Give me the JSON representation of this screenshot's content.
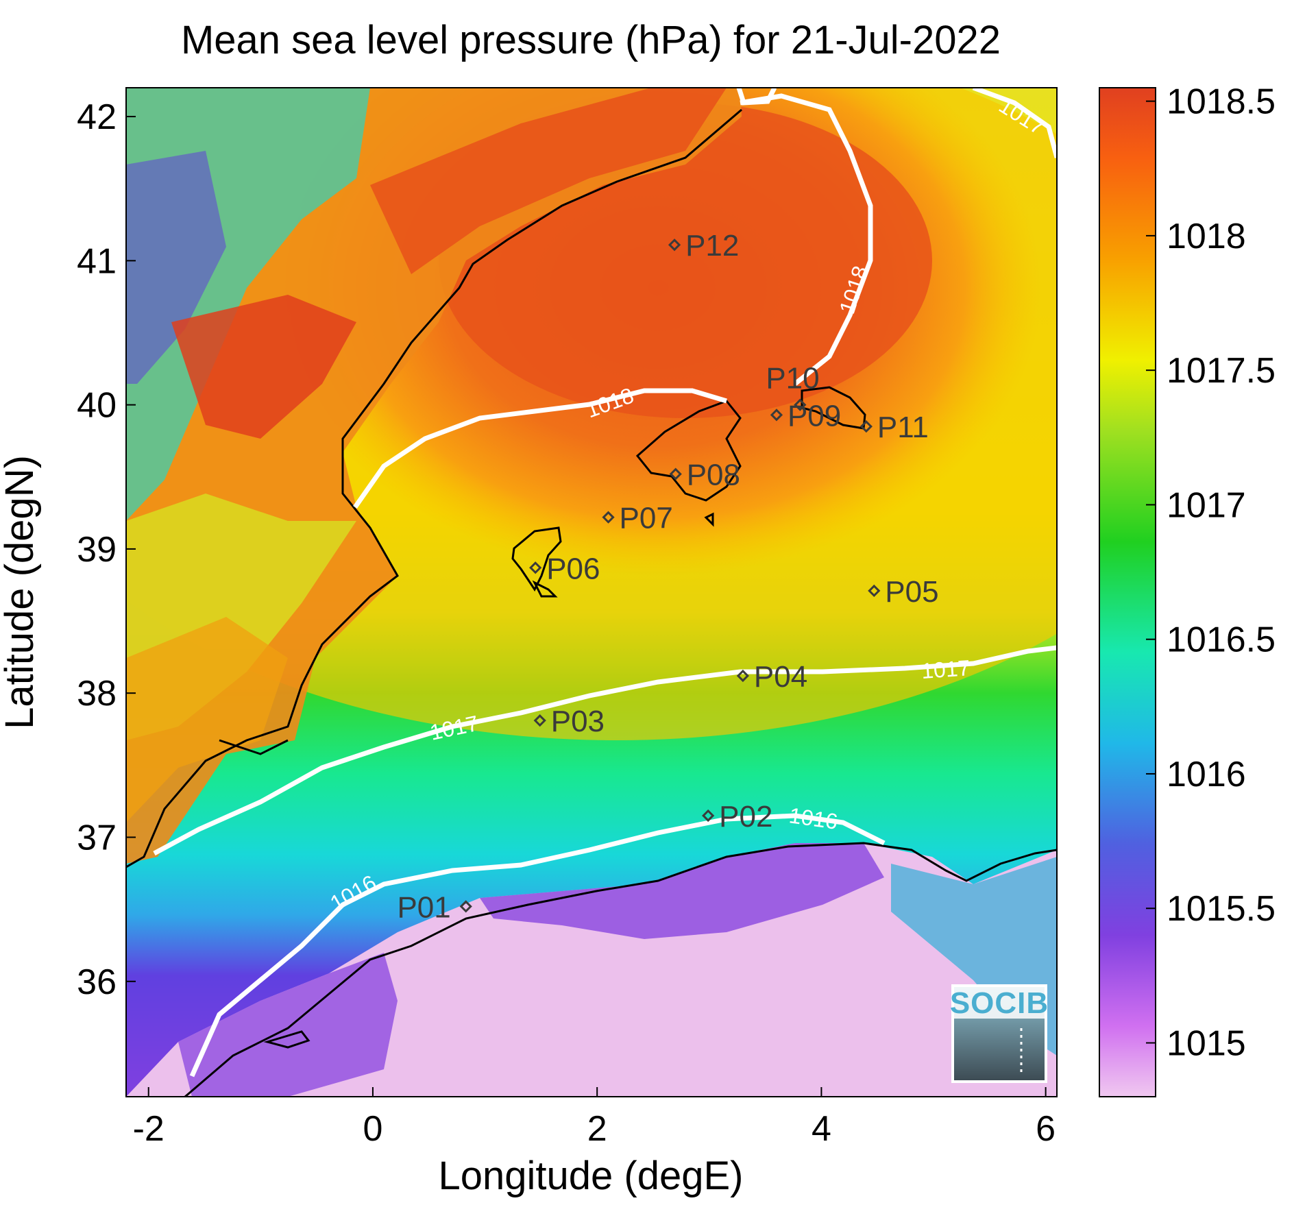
{
  "chart_data": {
    "type": "heatmap",
    "title": "Mean sea level pressure (hPa) for 21-Jul-2022",
    "xlabel": "Longitude (degE)",
    "ylabel": "Latitude (degN)",
    "xlim": [
      -2.2,
      6.1
    ],
    "ylim": [
      35.2,
      42.2
    ],
    "x_ticks": [
      "-2",
      "0",
      "2",
      "4",
      "6"
    ],
    "y_ticks": [
      "36",
      "37",
      "38",
      "39",
      "40",
      "41",
      "42"
    ],
    "colorbar": {
      "range": [
        1014.8,
        1018.55
      ],
      "ticks": [
        "1015",
        "1015.5",
        "1016",
        "1016.5",
        "1017",
        "1017.5",
        "1018",
        "1018.5"
      ],
      "colors": [
        "#f0c8f0",
        "#c040f0",
        "#7040e0",
        "#3a8ae6",
        "#18d8e0",
        "#18e890",
        "#20d020",
        "#a0e020",
        "#f0f000",
        "#f8b000",
        "#f87010",
        "#e04020"
      ]
    },
    "contour_labels": [
      "1016",
      "1016",
      "1017",
      "1017",
      "1017",
      "1018",
      "1018"
    ],
    "stations": [
      {
        "name": "P01",
        "lon": 0.83,
        "lat": 36.52
      },
      {
        "name": "P02",
        "lon": 2.99,
        "lat": 37.15
      },
      {
        "name": "P03",
        "lon": 1.49,
        "lat": 37.81
      },
      {
        "name": "P04",
        "lon": 3.3,
        "lat": 38.12
      },
      {
        "name": "P05",
        "lon": 4.47,
        "lat": 38.71
      },
      {
        "name": "P06",
        "lon": 1.45,
        "lat": 38.87
      },
      {
        "name": "P07",
        "lon": 2.1,
        "lat": 39.22
      },
      {
        "name": "P08",
        "lon": 2.7,
        "lat": 39.52
      },
      {
        "name": "P09",
        "lon": 3.6,
        "lat": 39.93
      },
      {
        "name": "P10",
        "lon": 3.81,
        "lat": 40.0
      },
      {
        "name": "P11",
        "lon": 4.4,
        "lat": 39.85
      },
      {
        "name": "P12",
        "lon": 2.69,
        "lat": 41.11
      }
    ],
    "logo_text": "SOCIB"
  }
}
